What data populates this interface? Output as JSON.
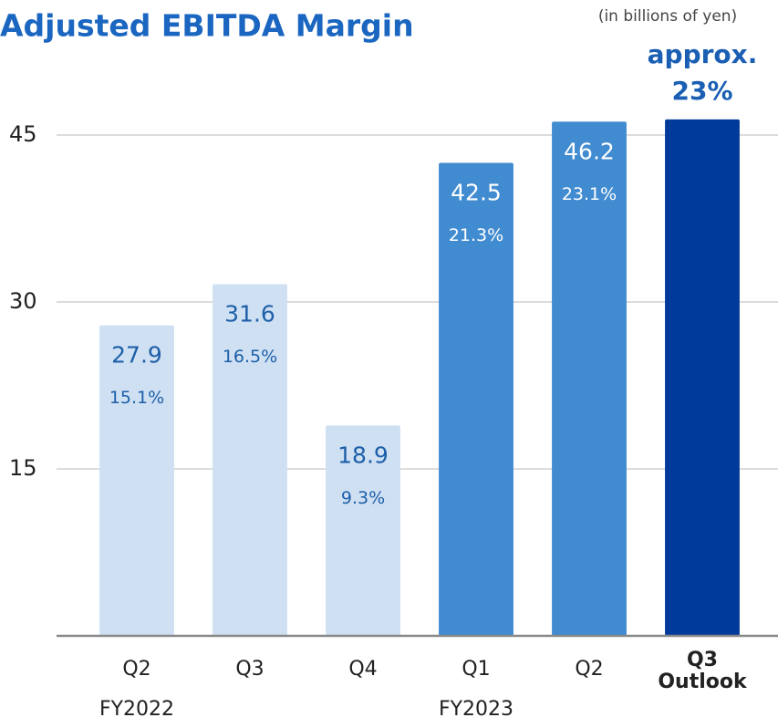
{
  "chart_data": {
    "type": "bar",
    "title": "Adjusted EBITDA Margin",
    "subtitle": "(in billions of yen)",
    "categories": [
      "Q2",
      "Q3",
      "Q4",
      "Q1",
      "Q2",
      "Q3 Outlook"
    ],
    "values": [
      27.9,
      31.6,
      18.9,
      42.5,
      46.2,
      46.4
    ],
    "value_labels": [
      "27.9",
      "31.6",
      "18.9",
      "42.5",
      "46.2",
      null
    ],
    "margin_labels": [
      "15.1%",
      "16.5%",
      "9.3%",
      "21.3%",
      "23.1%",
      null
    ],
    "outlook_label": [
      "approx.",
      "23%"
    ],
    "colors": [
      "#cfe0f3",
      "#cfe0f3",
      "#cfe0f3",
      "#418bd0",
      "#418bd0",
      "#003a9b"
    ],
    "label_colors": [
      "#1d5fa8",
      "#1d5fa8",
      "#1d5fa8",
      "#ffffff",
      "#ffffff",
      "#ffffff"
    ],
    "highlight_index": 5,
    "groups": [
      {
        "label": "FY2022",
        "start": 0
      },
      {
        "label": "FY2023",
        "start": 3
      }
    ],
    "ylim": [
      0,
      50
    ],
    "yticks": [
      15,
      30,
      45
    ],
    "grid": true
  }
}
